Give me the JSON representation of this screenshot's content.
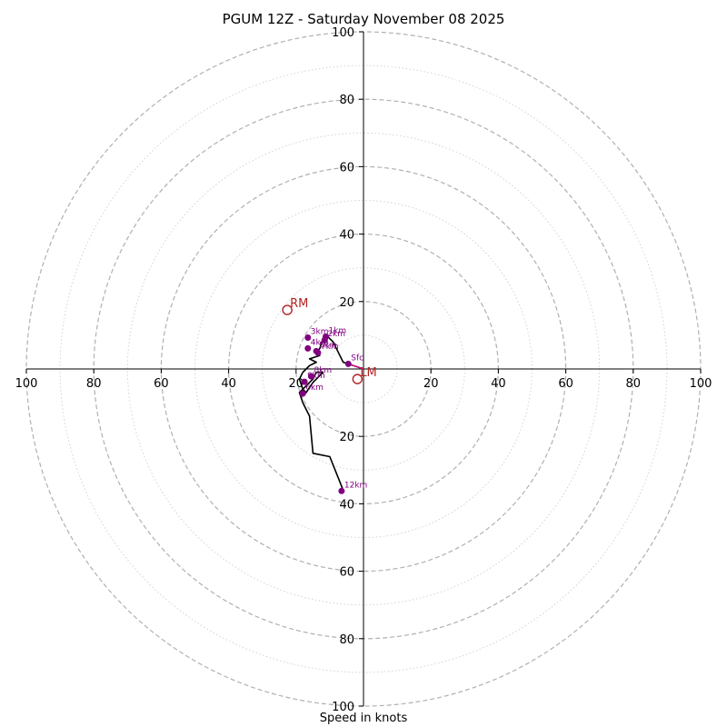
{
  "chart_data": {
    "type": "hodograph",
    "title": "PGUM 12Z - Saturday November 08 2025",
    "xlabel": "Speed in knots",
    "ring_max": 100,
    "ring_labels": [
      "20",
      "40",
      "60",
      "80",
      "100"
    ],
    "x_ticks": [
      {
        "value": -100,
        "label": "100"
      },
      {
        "value": -80,
        "label": "80"
      },
      {
        "value": -60,
        "label": "60"
      },
      {
        "value": -40,
        "label": "40"
      },
      {
        "value": -20,
        "label": "20"
      },
      {
        "value": 20,
        "label": "20"
      },
      {
        "value": 40,
        "label": "40"
      },
      {
        "value": 60,
        "label": "60"
      },
      {
        "value": 80,
        "label": "80"
      },
      {
        "value": 100,
        "label": "100"
      }
    ],
    "y_ticks": [
      {
        "value": 100,
        "label": "100"
      },
      {
        "value": 80,
        "label": "80"
      },
      {
        "value": 60,
        "label": "60"
      },
      {
        "value": 40,
        "label": "40"
      },
      {
        "value": 20,
        "label": "20"
      },
      {
        "value": -20,
        "label": "20"
      },
      {
        "value": -40,
        "label": "40"
      },
      {
        "value": -60,
        "label": "60"
      },
      {
        "value": -80,
        "label": "80"
      },
      {
        "value": -100,
        "label": "100"
      }
    ],
    "trace": [
      [
        0,
        0
      ],
      [
        -6,
        2
      ],
      [
        -7,
        4
      ],
      [
        -9,
        8
      ],
      [
        -11,
        10
      ],
      [
        -12,
        9
      ],
      [
        -13,
        6
      ],
      [
        -14,
        5
      ],
      [
        -13,
        4
      ],
      [
        -16,
        3
      ],
      [
        -14,
        2
      ],
      [
        -16,
        1
      ],
      [
        -17,
        0
      ],
      [
        -18,
        -1
      ],
      [
        -19,
        -3
      ],
      [
        -18,
        -6
      ],
      [
        -17,
        -7
      ],
      [
        -15,
        -4
      ],
      [
        -13,
        -2
      ],
      [
        -12,
        -1
      ],
      [
        -14,
        -1
      ],
      [
        -15,
        -3
      ],
      [
        -16,
        -4
      ],
      [
        -18,
        -6
      ],
      [
        -19,
        -7
      ],
      [
        -18,
        -10
      ],
      [
        -16,
        -14
      ],
      [
        -15,
        -25
      ],
      [
        -10,
        -26
      ],
      [
        -6,
        -36
      ]
    ],
    "height_points": [
      {
        "label": "Sfc",
        "u": -4.5,
        "v": 1.5
      },
      {
        "label": "1km",
        "u": -11.2,
        "v": 9.6
      },
      {
        "label": "2km",
        "u": -11.5,
        "v": 8.6
      },
      {
        "label": "3km",
        "u": -16.5,
        "v": 9.3
      },
      {
        "label": "4km",
        "u": -16.5,
        "v": 6.1
      },
      {
        "label": "5km",
        "u": -14,
        "v": 5.3
      },
      {
        "label": "7km",
        "u": -13.5,
        "v": 4.8
      },
      {
        "label": "8km",
        "u": -15.5,
        "v": -2.2
      },
      {
        "label": "9km",
        "u": -17.5,
        "v": -3.8
      },
      {
        "label": "6km",
        "u": -18,
        "v": -7.3
      },
      {
        "label": "12km",
        "u": -6.5,
        "v": -36.2
      }
    ],
    "motion_markers": [
      {
        "label": "RM",
        "u": -22.6,
        "v": 17.5
      },
      {
        "label": "LM",
        "u": -1.8,
        "v": -3
      }
    ],
    "colors": {
      "trace": "#000000",
      "height_point": "#800080",
      "surface_segment": "#c71585",
      "motion": "#b22222",
      "ring_major": "#b0b0b0",
      "ring_minor": "#d3d3d3"
    }
  }
}
